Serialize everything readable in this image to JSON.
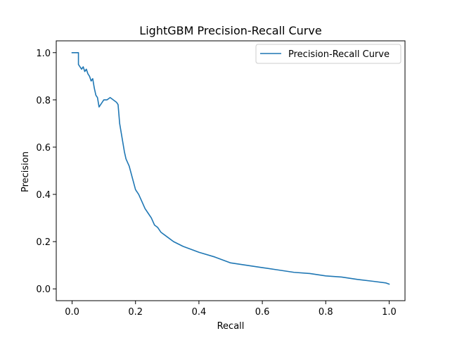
{
  "chart_data": {
    "type": "line",
    "title": "LightGBM Precision-Recall Curve",
    "xlabel": "Recall",
    "ylabel": "Precision",
    "xlim": [
      -0.05,
      1.05
    ],
    "ylim": [
      -0.05,
      1.05
    ],
    "xticks": [
      0.0,
      0.2,
      0.4,
      0.6,
      0.8,
      1.0
    ],
    "yticks": [
      0.0,
      0.2,
      0.4,
      0.6,
      0.8,
      1.0
    ],
    "xtick_labels": [
      "0.0",
      "0.2",
      "0.4",
      "0.6",
      "0.8",
      "1.0"
    ],
    "ytick_labels": [
      "0.0",
      "0.2",
      "0.4",
      "0.6",
      "0.8",
      "1.0"
    ],
    "grid": false,
    "legend_position": "top-right",
    "series": [
      {
        "name": "Precision-Recall Curve",
        "color": "#1f77b4",
        "x": [
          0.0,
          0.02,
          0.02,
          0.025,
          0.03,
          0.035,
          0.04,
          0.045,
          0.05,
          0.055,
          0.06,
          0.065,
          0.07,
          0.075,
          0.08,
          0.085,
          0.09,
          0.095,
          0.1,
          0.11,
          0.12,
          0.13,
          0.14,
          0.145,
          0.15,
          0.155,
          0.16,
          0.165,
          0.17,
          0.18,
          0.19,
          0.2,
          0.21,
          0.22,
          0.23,
          0.24,
          0.25,
          0.26,
          0.27,
          0.28,
          0.3,
          0.32,
          0.35,
          0.38,
          0.4,
          0.45,
          0.5,
          0.55,
          0.6,
          0.65,
          0.7,
          0.75,
          0.8,
          0.85,
          0.9,
          0.95,
          0.99,
          1.0
        ],
        "y": [
          1.0,
          1.0,
          0.95,
          0.94,
          0.93,
          0.94,
          0.92,
          0.93,
          0.91,
          0.9,
          0.88,
          0.89,
          0.85,
          0.82,
          0.81,
          0.77,
          0.78,
          0.79,
          0.8,
          0.8,
          0.81,
          0.8,
          0.79,
          0.78,
          0.7,
          0.66,
          0.62,
          0.58,
          0.55,
          0.52,
          0.47,
          0.42,
          0.4,
          0.37,
          0.34,
          0.32,
          0.3,
          0.27,
          0.26,
          0.24,
          0.22,
          0.2,
          0.18,
          0.165,
          0.155,
          0.135,
          0.11,
          0.1,
          0.09,
          0.08,
          0.07,
          0.065,
          0.055,
          0.05,
          0.04,
          0.032,
          0.025,
          0.02
        ]
      }
    ]
  }
}
